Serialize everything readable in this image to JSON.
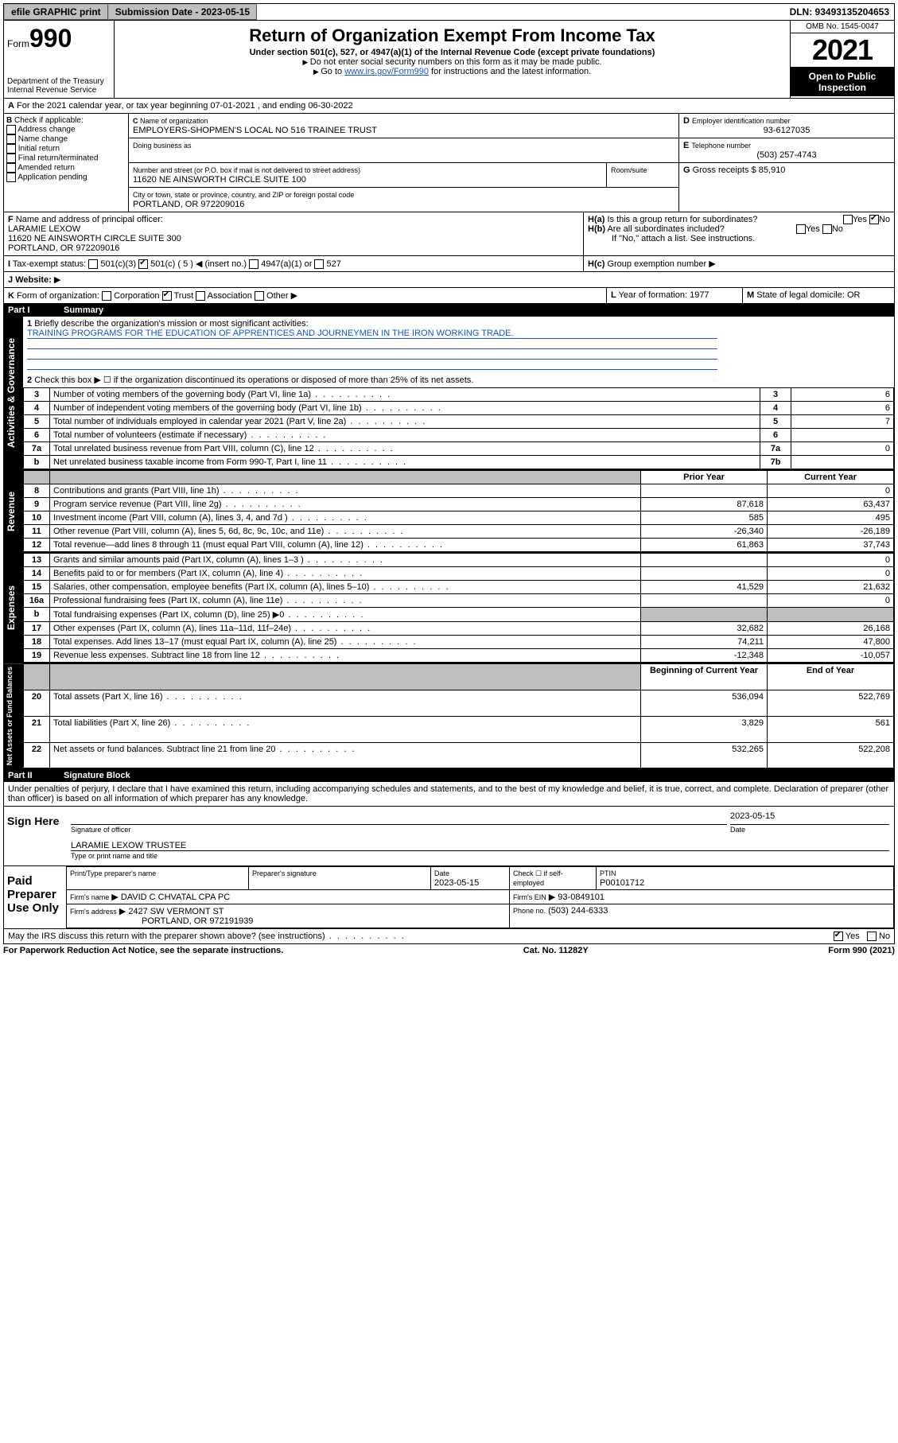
{
  "topbar": {
    "efile": "efile GRAPHIC print",
    "sub_label": "Submission Date - 2023-05-15",
    "dln": "DLN: 93493135204653"
  },
  "header": {
    "form_word": "Form",
    "form_no": "990",
    "dept": "Department of the Treasury",
    "irs": "Internal Revenue Service",
    "title": "Return of Organization Exempt From Income Tax",
    "sub1": "Under section 501(c), 527, or 4947(a)(1) of the Internal Revenue Code (except private foundations)",
    "sub2": "Do not enter social security numbers on this form as it may be made public.",
    "sub3_prefix": "Go to ",
    "sub3_link": "www.irs.gov/Form990",
    "sub3_suffix": " for instructions and the latest information.",
    "omb": "OMB No. 1545-0047",
    "year": "2021",
    "open": "Open to Public Inspection"
  },
  "line_a": "For the 2021 calendar year, or tax year beginning 07-01-2021  , and ending 06-30-2022",
  "block_b": {
    "label": "Check if applicable:",
    "opts": [
      "Address change",
      "Name change",
      "Initial return",
      "Final return/terminated",
      "Amended return",
      "Application pending"
    ]
  },
  "block_c": {
    "name_label": "Name of organization",
    "name": "EMPLOYERS-SHOPMEN'S LOCAL NO 516 TRAINEE TRUST",
    "dba_label": "Doing business as",
    "addr_label": "Number and street (or P.O. box if mail is not delivered to street address)",
    "addr": "11620 NE AINSWORTH CIRCLE SUITE 100",
    "room_label": "Room/suite",
    "city_label": "City or town, state or province, country, and ZIP or foreign postal code",
    "city": "PORTLAND, OR  972209016"
  },
  "block_d": {
    "label": "Employer identification number",
    "value": "93-6127035"
  },
  "block_e": {
    "label": "Telephone number",
    "value": "(503) 257-4743"
  },
  "block_g": {
    "label": "Gross receipts $",
    "value": "85,910"
  },
  "block_f": {
    "label": "Name and address of principal officer:",
    "name": "LARAMIE LEXOW",
    "addr1": "11620 NE AINSWORTH CIRCLE SUITE 300",
    "addr2": "PORTLAND, OR  972209016"
  },
  "block_h": {
    "ha": "Is this a group return for subordinates?",
    "hb": "Are all subordinates included?",
    "hnote": "If \"No,\" attach a list. See instructions.",
    "hc": "Group exemption number"
  },
  "block_i": {
    "label": "Tax-exempt status:",
    "opts": [
      "501(c)(3)",
      "501(c) ( 5 ) ◀ (insert no.)",
      "4947(a)(1) or",
      "527"
    ]
  },
  "block_j": {
    "label": "Website:"
  },
  "block_k": {
    "label": "Form of organization:",
    "opts": [
      "Corporation",
      "Trust",
      "Association",
      "Other"
    ]
  },
  "block_l": {
    "label": "Year of formation:",
    "value": "1977"
  },
  "block_m": {
    "label": "State of legal domicile:",
    "value": "OR"
  },
  "part1": {
    "no": "Part I",
    "title": "Summary",
    "line1_label": "Briefly describe the organization's mission or most significant activities:",
    "line1_text": "TRAINING PROGRAMS FOR THE EDUCATION OF APPRENTICES AND JOURNEYMEN IN THE IRON WORKING TRADE.",
    "line2": "Check this box ▶ ☐ if the organization discontinued its operations or disposed of more than 25% of its net assets.",
    "col_py": "Prior Year",
    "col_cy": "Current Year",
    "col_bcy": "Beginning of Current Year",
    "col_eoy": "End of Year"
  },
  "sidetabs": {
    "ag": "Activities & Governance",
    "rev": "Revenue",
    "exp": "Expenses",
    "na": "Net Assets or Fund Balances"
  },
  "gov_rows": [
    {
      "n": "3",
      "d": "Number of voting members of the governing body (Part VI, line 1a)",
      "c": "3",
      "v": "6"
    },
    {
      "n": "4",
      "d": "Number of independent voting members of the governing body (Part VI, line 1b)",
      "c": "4",
      "v": "6"
    },
    {
      "n": "5",
      "d": "Total number of individuals employed in calendar year 2021 (Part V, line 2a)",
      "c": "5",
      "v": "7"
    },
    {
      "n": "6",
      "d": "Total number of volunteers (estimate if necessary)",
      "c": "6",
      "v": ""
    },
    {
      "n": "7a",
      "d": "Total unrelated business revenue from Part VIII, column (C), line 12",
      "c": "7a",
      "v": "0"
    },
    {
      "n": "b",
      "d": "Net unrelated business taxable income from Form 990-T, Part I, line 11",
      "c": "7b",
      "v": ""
    }
  ],
  "rev_rows": [
    {
      "n": "8",
      "d": "Contributions and grants (Part VIII, line 1h)",
      "py": "",
      "cy": "0"
    },
    {
      "n": "9",
      "d": "Program service revenue (Part VIII, line 2g)",
      "py": "87,618",
      "cy": "63,437"
    },
    {
      "n": "10",
      "d": "Investment income (Part VIII, column (A), lines 3, 4, and 7d )",
      "py": "585",
      "cy": "495"
    },
    {
      "n": "11",
      "d": "Other revenue (Part VIII, column (A), lines 5, 6d, 8c, 9c, 10c, and 11e)",
      "py": "-26,340",
      "cy": "-26,189"
    },
    {
      "n": "12",
      "d": "Total revenue—add lines 8 through 11 (must equal Part VIII, column (A), line 12)",
      "py": "61,863",
      "cy": "37,743"
    }
  ],
  "exp_rows": [
    {
      "n": "13",
      "d": "Grants and similar amounts paid (Part IX, column (A), lines 1–3 )",
      "py": "",
      "cy": "0"
    },
    {
      "n": "14",
      "d": "Benefits paid to or for members (Part IX, column (A), line 4)",
      "py": "",
      "cy": "0"
    },
    {
      "n": "15",
      "d": "Salaries, other compensation, employee benefits (Part IX, column (A), lines 5–10)",
      "py": "41,529",
      "cy": "21,632"
    },
    {
      "n": "16a",
      "d": "Professional fundraising fees (Part IX, column (A), line 11e)",
      "py": "",
      "cy": "0"
    },
    {
      "n": "b",
      "d": "Total fundraising expenses (Part IX, column (D), line 25) ▶0",
      "py": "sh",
      "cy": "sh"
    },
    {
      "n": "17",
      "d": "Other expenses (Part IX, column (A), lines 11a–11d, 11f–24e)",
      "py": "32,682",
      "cy": "26,168"
    },
    {
      "n": "18",
      "d": "Total expenses. Add lines 13–17 (must equal Part IX, column (A), line 25)",
      "py": "74,211",
      "cy": "47,800"
    },
    {
      "n": "19",
      "d": "Revenue less expenses. Subtract line 18 from line 12",
      "py": "-12,348",
      "cy": "-10,057"
    }
  ],
  "na_rows": [
    {
      "n": "20",
      "d": "Total assets (Part X, line 16)",
      "py": "536,094",
      "cy": "522,769"
    },
    {
      "n": "21",
      "d": "Total liabilities (Part X, line 26)",
      "py": "3,829",
      "cy": "561"
    },
    {
      "n": "22",
      "d": "Net assets or fund balances. Subtract line 21 from line 20",
      "py": "532,265",
      "cy": "522,208"
    }
  ],
  "part2": {
    "no": "Part II",
    "title": "Signature Block",
    "decl": "Under penalties of perjury, I declare that I have examined this return, including accompanying schedules and statements, and to the best of my knowledge and belief, it is true, correct, and complete. Declaration of preparer (other than officer) is based on all information of which preparer has any knowledge."
  },
  "sign": {
    "here": "Sign Here",
    "sig_officer": "Signature of officer",
    "date_label": "Date",
    "date": "2023-05-15",
    "name": "LARAMIE LEXOW TRUSTEE",
    "name_label": "Type or print name and title"
  },
  "paid": {
    "title": "Paid Preparer Use Only",
    "h1": "Print/Type preparer's name",
    "h2": "Preparer's signature",
    "h3": "Date",
    "h3v": "2023-05-15",
    "h4": "Check ☐ if self-employed",
    "h5": "PTIN",
    "h5v": "P00101712",
    "firm_name_l": "Firm's name",
    "firm_name": "DAVID C CHVATAL CPA PC",
    "firm_ein_l": "Firm's EIN",
    "firm_ein": "93-0849101",
    "firm_addr_l": "Firm's address",
    "firm_addr1": "2427 SW VERMONT ST",
    "firm_addr2": "PORTLAND, OR  972191939",
    "phone_l": "Phone no.",
    "phone": "(503) 244-6333"
  },
  "may": "May the IRS discuss this return with the preparer shown above? (see instructions)",
  "footer": {
    "left": "For Paperwork Reduction Act Notice, see the separate instructions.",
    "mid": "Cat. No. 11282Y",
    "right": "Form 990 (2021)"
  },
  "yesno": {
    "yes": "Yes",
    "no": "No"
  }
}
